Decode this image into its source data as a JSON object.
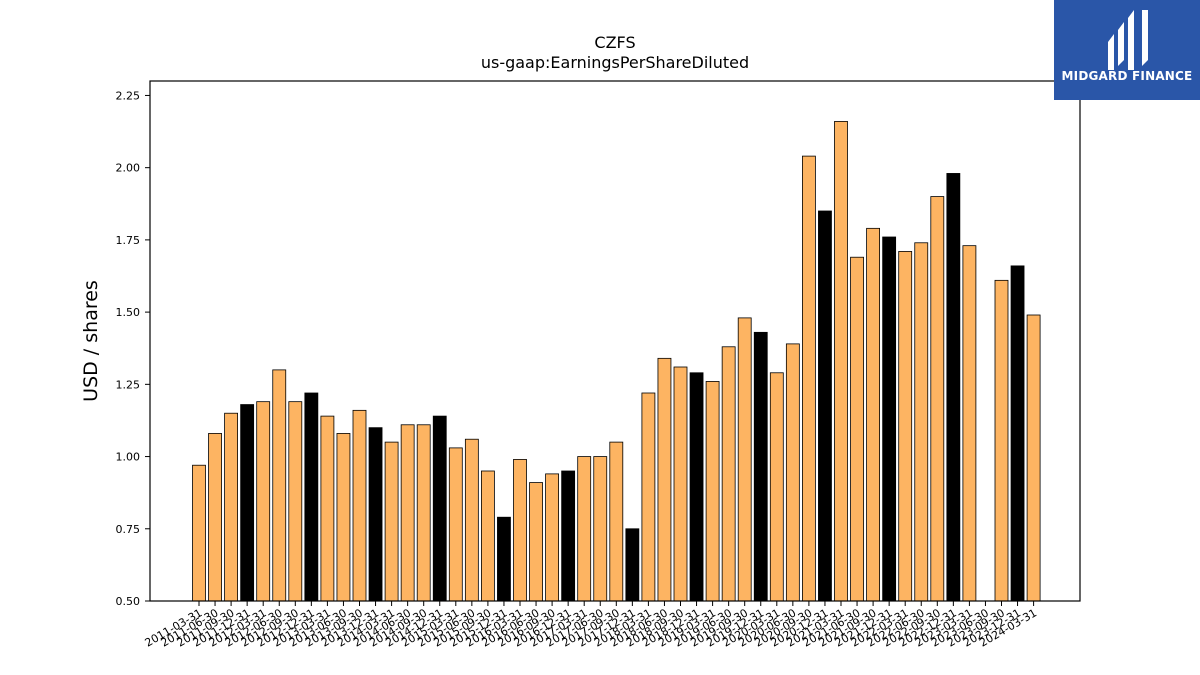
{
  "logo": {
    "text": "MIDGARD FINANCE",
    "bg_color": "#2a56a8"
  },
  "chart_data": {
    "type": "bar",
    "title": "CZFS",
    "subtitle": "us-gaap:EarningsPerShareDiluted",
    "xlabel": "",
    "ylabel": "USD / shares",
    "ylim": [
      0.5,
      2.3
    ],
    "yticks": [
      "0.50",
      "0.75",
      "1.00",
      "1.25",
      "1.50",
      "1.75",
      "2.00",
      "2.25"
    ],
    "grid": false,
    "colors": {
      "quarter": "#fdb462",
      "year_end": "#000000",
      "edge": "#000000"
    },
    "categories": [
      "2011-03-31",
      "2011-06-30",
      "2011-09-30",
      "2011-12-31",
      "2012-03-31",
      "2012-06-30",
      "2012-09-30",
      "2012-12-31",
      "2013-03-31",
      "2013-06-30",
      "2013-09-30",
      "2013-12-31",
      "2014-03-31",
      "2014-06-30",
      "2014-09-30",
      "2014-12-31",
      "2015-03-31",
      "2015-06-30",
      "2015-09-30",
      "2015-12-31",
      "2016-03-31",
      "2016-06-30",
      "2016-09-30",
      "2016-12-31",
      "2017-03-31",
      "2017-06-30",
      "2017-09-30",
      "2017-12-31",
      "2018-03-31",
      "2018-06-30",
      "2018-09-30",
      "2018-12-31",
      "2019-03-31",
      "2019-06-30",
      "2019-09-30",
      "2019-12-31",
      "2020-03-31",
      "2020-06-30",
      "2020-09-30",
      "2020-12-31",
      "2021-03-31",
      "2021-06-30",
      "2021-09-30",
      "2021-12-31",
      "2022-03-31",
      "2022-06-30",
      "2022-09-30",
      "2022-12-31",
      "2023-03-31",
      "2023-06-30",
      "2023-09-30",
      "2023-12-31",
      "2024-03-31"
    ],
    "values": [
      0.97,
      1.08,
      1.15,
      1.18,
      1.19,
      1.3,
      1.19,
      1.22,
      1.14,
      1.08,
      1.16,
      1.1,
      1.05,
      1.11,
      1.11,
      1.14,
      1.03,
      1.06,
      0.95,
      0.79,
      0.99,
      0.91,
      0.94,
      0.95,
      1.0,
      1.0,
      1.05,
      0.75,
      1.22,
      1.34,
      1.31,
      1.29,
      1.26,
      1.38,
      1.48,
      1.43,
      1.29,
      1.39,
      2.04,
      1.85,
      2.16,
      1.69,
      1.79,
      1.76,
      1.71,
      1.74,
      1.9,
      1.98,
      1.73,
      null,
      1.61,
      1.66,
      1.49
    ],
    "tick_labels": [
      "2011-03-31",
      "2011-06-30",
      "2011-09-30",
      "2011-12-31",
      "2012-03-31",
      "2012-06-30",
      "2012-09-30",
      "2012-12-31",
      "2013-03-31",
      "2013-06-30",
      "2013-09-30",
      "2013-12-31",
      "2014-03-31",
      "2014-06-30",
      "2014-09-30",
      "2014-12-31",
      "2015-03-31",
      "2015-06-30",
      "2015-09-30",
      "2015-12-31",
      "2016-03-31",
      "2016-06-30",
      "2016-09-30",
      "2016-12-31",
      "2017-03-31",
      "2017-06-30",
      "2017-09-30",
      "2017-12-31",
      "2018-03-31",
      "2018-06-30",
      "2018-09-30",
      "2018-12-31",
      "2019-03-31",
      "2019-06-30",
      "2019-09-30",
      "2019-12-31",
      "2020-03-31",
      "2020-06-30",
      "2020-09-30",
      "2020-12-31",
      "2021-03-31",
      "2021-06-30",
      "2021-09-30",
      "2021-12-31",
      "2022-03-31",
      "2022-06-30",
      "2022-09-30",
      "2022-12-31",
      "2023-03-31",
      "2023-06-30",
      "2023-09-30",
      "2023-12-31",
      "2024-03-31"
    ]
  }
}
